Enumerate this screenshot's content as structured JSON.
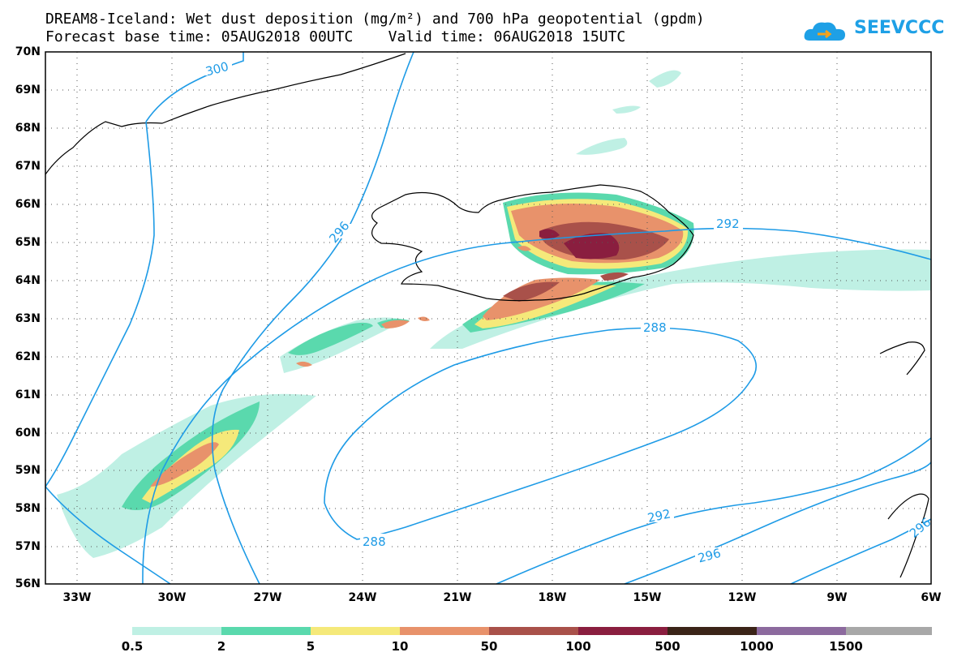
{
  "title": {
    "line1": "DREAM8-Iceland: Wet dust deposition (mg/m²) and 700 hPa geopotential (gpdm)",
    "line2": "Forecast base time: 05AUG2018 00UTC    Valid time: 06AUG2018 15UTC"
  },
  "brand": {
    "name": "SEEVCCC",
    "icon": "cloud-logo-icon"
  },
  "map": {
    "lat_labels": [
      "70N",
      "69N",
      "68N",
      "67N",
      "66N",
      "65N",
      "64N",
      "63N",
      "62N",
      "61N",
      "60N",
      "59N",
      "58N",
      "57N",
      "56N"
    ],
    "lon_labels": [
      "33W",
      "30W",
      "27W",
      "24W",
      "21W",
      "18W",
      "15W",
      "12W",
      "9W",
      "6W"
    ],
    "contour_labels": [
      "300",
      "296",
      "292",
      "288",
      "288",
      "292",
      "296",
      "296"
    ],
    "contour_color": "#1e9be6",
    "grid": true
  },
  "colorbar": {
    "labels": [
      "0.5",
      "2",
      "5",
      "10",
      "50",
      "100",
      "500",
      "1000",
      "1500"
    ],
    "colors": [
      "#bff0e4",
      "#5ad9ad",
      "#f5e97a",
      "#e8926b",
      "#a9514a",
      "#8a1e3f",
      "#3b2418",
      "#8c6a9e",
      "#a8a8a8"
    ]
  }
}
